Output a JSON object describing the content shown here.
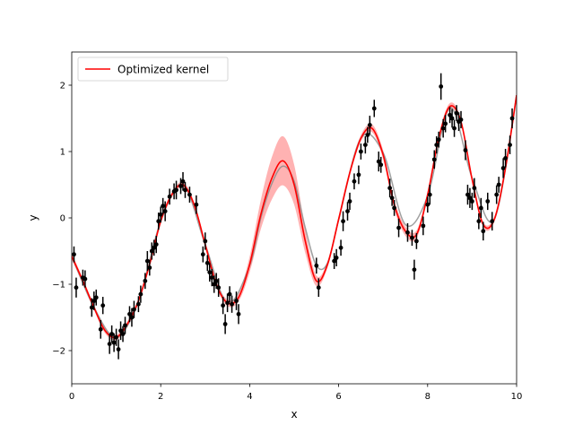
{
  "chart_data": {
    "type": "line",
    "title": "",
    "xlabel": "x",
    "ylabel": "y",
    "xlim": [
      0,
      10
    ],
    "ylim": [
      -2.5,
      2.5
    ],
    "xticks": [
      0,
      2,
      4,
      6,
      8,
      10
    ],
    "yticks": [
      -2,
      -1,
      0,
      1,
      2
    ],
    "grid": false,
    "legend": {
      "placement": "top-left",
      "entries": [
        {
          "name": "Optimized kernel",
          "color": "#ff0000"
        }
      ]
    },
    "series": [
      {
        "name": "Optimized kernel",
        "color": "#ff0000",
        "band_color": "#ff0000",
        "x": [
          0.0,
          0.25,
          0.5,
          0.75,
          1.0,
          1.25,
          1.5,
          1.75,
          2.0,
          2.25,
          2.5,
          2.75,
          3.0,
          3.25,
          3.5,
          3.75,
          4.0,
          4.25,
          4.5,
          4.75,
          5.0,
          5.25,
          5.5,
          5.75,
          6.0,
          6.25,
          6.5,
          6.75,
          7.0,
          7.25,
          7.5,
          7.75,
          8.0,
          8.25,
          8.5,
          8.75,
          9.0,
          9.25,
          9.5,
          9.75,
          10.0
        ],
        "mean": [
          -0.58,
          -0.95,
          -1.35,
          -1.7,
          -1.8,
          -1.6,
          -1.25,
          -0.7,
          -0.05,
          0.35,
          0.5,
          0.2,
          -0.4,
          -1.0,
          -1.28,
          -1.2,
          -0.7,
          0.05,
          0.6,
          0.86,
          0.5,
          -0.35,
          -0.95,
          -0.7,
          -0.02,
          0.68,
          1.2,
          1.35,
          0.95,
          0.2,
          -0.2,
          -0.25,
          0.35,
          1.2,
          1.68,
          1.45,
          0.58,
          -0.1,
          -0.02,
          0.75,
          1.85
        ],
        "band": [
          0.05,
          0.04,
          0.04,
          0.04,
          0.04,
          0.04,
          0.04,
          0.04,
          0.04,
          0.04,
          0.04,
          0.04,
          0.04,
          0.04,
          0.05,
          0.06,
          0.12,
          0.22,
          0.32,
          0.37,
          0.3,
          0.18,
          0.08,
          0.05,
          0.05,
          0.05,
          0.05,
          0.06,
          0.07,
          0.07,
          0.07,
          0.06,
          0.05,
          0.05,
          0.05,
          0.04,
          0.04,
          0.04,
          0.04,
          0.04,
          0.05
        ]
      },
      {
        "name": "",
        "color": "#888888",
        "x": [
          0.0,
          0.5,
          1.0,
          1.5,
          2.0,
          2.5,
          3.0,
          3.5,
          4.0,
          4.25,
          4.5,
          4.75,
          5.0,
          5.25,
          5.5,
          5.75,
          6.0,
          6.5,
          7.0,
          7.5,
          8.0,
          8.5,
          9.0,
          9.5,
          10.0
        ],
        "values": [
          -0.58,
          -1.35,
          -1.8,
          -1.25,
          -0.05,
          0.5,
          -0.4,
          -1.28,
          -0.72,
          0.0,
          0.52,
          0.78,
          0.55,
          -0.15,
          -0.72,
          -0.68,
          -0.03,
          1.2,
          0.98,
          -0.1,
          0.33,
          1.66,
          0.6,
          -0.02,
          1.85
        ]
      }
    ],
    "points": {
      "color": "#000000",
      "x": [
        0.05,
        0.1,
        0.25,
        0.3,
        0.45,
        0.5,
        0.55,
        0.65,
        0.7,
        0.85,
        0.9,
        0.95,
        1.0,
        1.05,
        1.1,
        1.15,
        1.2,
        1.3,
        1.35,
        1.4,
        1.5,
        1.55,
        1.65,
        1.7,
        1.75,
        1.8,
        1.85,
        1.9,
        1.95,
        2.0,
        2.05,
        2.1,
        2.2,
        2.3,
        2.35,
        2.45,
        2.5,
        2.55,
        2.65,
        2.8,
        2.95,
        3.0,
        3.05,
        3.1,
        3.15,
        3.2,
        3.25,
        3.3,
        3.4,
        3.45,
        3.5,
        3.55,
        3.6,
        3.7,
        3.75,
        5.5,
        5.55,
        5.9,
        5.95,
        6.05,
        6.1,
        6.2,
        6.25,
        6.35,
        6.45,
        6.5,
        6.6,
        6.65,
        6.7,
        6.8,
        6.9,
        6.95,
        7.15,
        7.2,
        7.25,
        7.35,
        7.55,
        7.65,
        7.7,
        7.75,
        7.9,
        8.0,
        8.05,
        8.15,
        8.2,
        8.25,
        8.3,
        8.35,
        8.4,
        8.5,
        8.55,
        8.6,
        8.65,
        8.7,
        8.75,
        8.85,
        8.9,
        8.95,
        9.0,
        9.05,
        9.15,
        9.2,
        9.25,
        9.35,
        9.45,
        9.55,
        9.6,
        9.7,
        9.75,
        9.85,
        9.9
      ],
      "y": [
        -0.55,
        -1.05,
        -0.9,
        -0.92,
        -1.35,
        -1.25,
        -1.2,
        -1.68,
        -1.32,
        -1.9,
        -1.75,
        -1.88,
        -1.8,
        -1.98,
        -1.7,
        -1.75,
        -1.62,
        -1.45,
        -1.5,
        -1.38,
        -1.3,
        -1.15,
        -0.95,
        -0.65,
        -0.75,
        -0.5,
        -0.45,
        -0.4,
        -0.05,
        0.05,
        0.18,
        0.1,
        0.32,
        0.4,
        0.42,
        0.48,
        0.55,
        0.42,
        0.35,
        0.2,
        -0.55,
        -0.35,
        -0.68,
        -0.82,
        -0.9,
        -1.0,
        -0.95,
        -1.05,
        -1.32,
        -1.6,
        -1.28,
        -1.15,
        -1.3,
        -1.25,
        -1.45,
        -0.72,
        -1.05,
        -0.65,
        -0.6,
        -0.45,
        -0.05,
        0.1,
        0.25,
        0.55,
        0.65,
        1.0,
        1.1,
        1.25,
        1.4,
        1.65,
        0.85,
        0.8,
        0.45,
        0.3,
        0.15,
        -0.15,
        -0.22,
        -0.3,
        -0.78,
        -0.35,
        -0.12,
        0.2,
        0.35,
        0.88,
        1.1,
        1.18,
        1.98,
        1.35,
        1.42,
        1.55,
        1.5,
        1.35,
        1.58,
        1.45,
        1.48,
        1.02,
        0.35,
        0.3,
        0.25,
        0.45,
        -0.05,
        0.15,
        -0.2,
        0.25,
        -0.05,
        0.35,
        0.5,
        0.75,
        0.9,
        1.1,
        1.5
      ],
      "yerr": [
        0.12,
        0.15,
        0.12,
        0.13,
        0.14,
        0.14,
        0.12,
        0.14,
        0.13,
        0.15,
        0.13,
        0.14,
        0.13,
        0.15,
        0.14,
        0.12,
        0.13,
        0.12,
        0.14,
        0.13,
        0.12,
        0.13,
        0.12,
        0.15,
        0.12,
        0.13,
        0.12,
        0.13,
        0.13,
        0.12,
        0.12,
        0.15,
        0.12,
        0.12,
        0.14,
        0.12,
        0.14,
        0.12,
        0.12,
        0.14,
        0.12,
        0.13,
        0.12,
        0.14,
        0.13,
        0.13,
        0.12,
        0.14,
        0.13,
        0.15,
        0.14,
        0.12,
        0.13,
        0.14,
        0.15,
        0.12,
        0.14,
        0.12,
        0.13,
        0.12,
        0.15,
        0.14,
        0.13,
        0.12,
        0.14,
        0.12,
        0.13,
        0.12,
        0.14,
        0.13,
        0.15,
        0.12,
        0.14,
        0.12,
        0.12,
        0.14,
        0.14,
        0.12,
        0.15,
        0.12,
        0.14,
        0.12,
        0.15,
        0.14,
        0.13,
        0.12,
        0.2,
        0.14,
        0.13,
        0.12,
        0.14,
        0.13,
        0.12,
        0.14,
        0.13,
        0.15,
        0.15,
        0.15,
        0.13,
        0.15,
        0.12,
        0.15,
        0.14,
        0.13,
        0.14,
        0.14,
        0.12,
        0.15,
        0.14,
        0.14,
        0.15
      ]
    }
  }
}
